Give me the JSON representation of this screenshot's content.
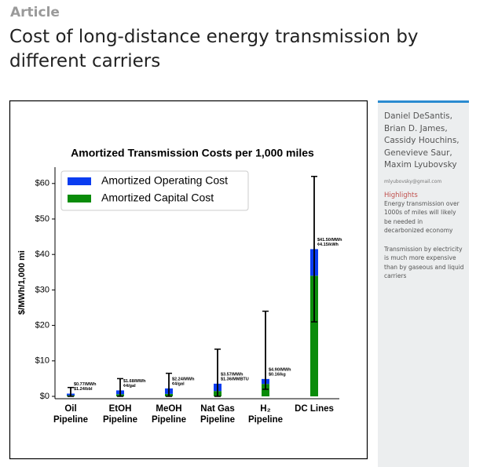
{
  "header": {
    "kicker": "Article",
    "title": "Cost of long-distance energy transmission by different carriers"
  },
  "chart_data": {
    "type": "stacked_bar",
    "title": "Amortized Transmission Costs per 1,000 miles",
    "y_label": "$/MWh/1,000 mi",
    "categories": [
      [
        "Oil",
        "Pipeline"
      ],
      [
        "EtOH",
        "Pipeline"
      ],
      [
        "MeOH",
        "Pipeline"
      ],
      [
        "Nat Gas",
        "Pipeline"
      ],
      [
        "H₂",
        "Pipeline"
      ],
      [
        "DC Lines"
      ]
    ],
    "series": [
      {
        "name": "Amortized Operating Cost",
        "color": "#0a3cf0",
        "values": [
          0.47,
          1.08,
          1.54,
          2.07,
          1.4,
          7.5
        ]
      },
      {
        "name": "Amortized Capital Cost",
        "color": "#0a8c0a",
        "values": [
          0.3,
          0.6,
          0.7,
          1.5,
          3.5,
          34
        ]
      }
    ],
    "whisker_low": [
      0,
      0,
      0,
      0,
      2,
      21
    ],
    "whisker_high": [
      2.5,
      5,
      6.5,
      13.3,
      24,
      62
    ],
    "annotations": [
      [
        "$0.77/MWh",
        "$1.24/bbl"
      ],
      [
        "$1.68/MWh",
        "¢4/gal"
      ],
      [
        "$2.24/MWh",
        "¢4/gal"
      ],
      [
        "$3.57/MWh",
        "$1.36/MMBTU"
      ],
      [
        "$4.90/MWh",
        "$0.16/kg"
      ],
      [
        "$41.50/MWh",
        "¢4.15/kWh"
      ]
    ],
    "ylim": [
      0,
      64.6
    ],
    "yticks": [
      {
        "value": 0,
        "label": "$0"
      },
      {
        "value": 10,
        "label": "$10"
      },
      {
        "value": 20,
        "label": "$20"
      },
      {
        "value": 30,
        "label": "$30"
      },
      {
        "value": 40,
        "label": "$40"
      },
      {
        "value": 50,
        "label": "$50"
      },
      {
        "value": 60,
        "label": "$60"
      }
    ],
    "legend": "upper left"
  },
  "sidebar": {
    "authors": [
      "Daniel DeSantis,",
      "Brian D. James,",
      "Cassidy Houchins,",
      "Genevieve Saur,",
      "Maxim Lyubovsky"
    ],
    "email": "mlyubovsky@gmail.com",
    "highlights_heading": "Highlights",
    "highlights": [
      "Energy transmission over 1000s of miles will likely be needed in decarbonized economy",
      "Transmission by electricity is much more expensive than by gaseous and liquid carriers"
    ]
  }
}
